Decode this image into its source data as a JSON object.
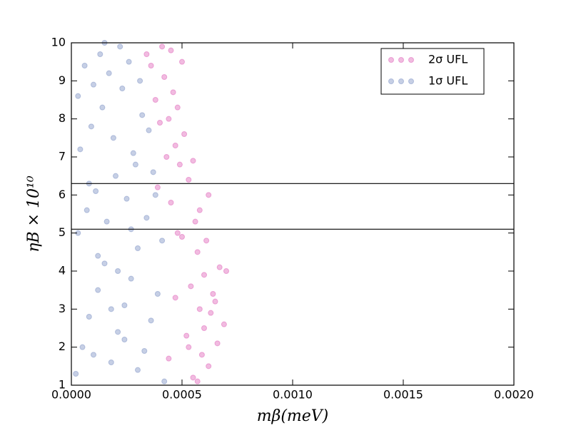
{
  "chart_data": {
    "type": "scatter",
    "xlabel": "mβ(meV)",
    "ylabel": "ηB × 10¹⁰",
    "xlim": [
      0,
      0.002
    ],
    "ylim": [
      1,
      10
    ],
    "xticks": [
      {
        "value": 0,
        "label": "0.0000"
      },
      {
        "value": 0.0005,
        "label": "0.0005"
      },
      {
        "value": 0.001,
        "label": "0.0010"
      },
      {
        "value": 0.0015,
        "label": "0.0015"
      },
      {
        "value": 0.002,
        "label": "0.0020"
      }
    ],
    "yticks": [
      1,
      2,
      3,
      4,
      5,
      6,
      7,
      8,
      9,
      10
    ],
    "hlines": [
      6.3,
      5.1
    ],
    "legend": "upper right",
    "series": [
      {
        "name": "2σ UFL",
        "color": "#e377c2",
        "x": [
          0.00062,
          0.00066,
          0.00069,
          0.00058,
          0.00064,
          0.00055,
          0.0006,
          0.00067,
          0.00052,
          0.00057,
          0.00063,
          0.0007,
          0.00054,
          0.00059,
          0.00065,
          0.00061,
          0.00056,
          0.00058,
          0.00062,
          0.00053,
          0.00049,
          0.00055,
          0.00047,
          0.00051,
          0.00044,
          0.00048,
          0.00046,
          0.00042,
          0.0005,
          0.00045,
          0.00043,
          0.00041,
          0.00048,
          0.00038,
          0.0004,
          0.00036,
          0.00039,
          0.00034,
          0.00045,
          0.0005,
          0.00053,
          0.00057,
          0.0006,
          0.00047,
          0.00044
        ],
        "values": [
          1.5,
          2.1,
          2.6,
          3.0,
          3.4,
          1.2,
          3.9,
          4.1,
          2.3,
          4.5,
          2.9,
          4.0,
          3.6,
          1.8,
          3.2,
          4.8,
          5.3,
          5.6,
          6.0,
          6.4,
          6.8,
          6.9,
          7.3,
          7.6,
          8.0,
          8.3,
          8.7,
          9.1,
          9.5,
          9.8,
          7.0,
          9.9,
          5.0,
          8.5,
          7.9,
          9.4,
          6.2,
          9.7,
          5.8,
          4.9,
          2.0,
          1.1,
          2.5,
          3.3,
          1.7
        ]
      },
      {
        "name": "1σ UFL",
        "color": "#8da0cb",
        "x": [
          2e-05,
          5e-05,
          8e-05,
          0.00012,
          0.00015,
          0.00018,
          0.00021,
          0.00024,
          0.00027,
          0.0003,
          0.00033,
          0.00036,
          0.00039,
          0.00042,
          3e-05,
          7e-05,
          0.00011,
          0.00016,
          0.0002,
          0.00025,
          0.00029,
          0.00034,
          0.00038,
          0.00041,
          4e-05,
          9e-05,
          0.00014,
          0.00019,
          0.00023,
          0.00028,
          0.00032,
          0.00037,
          6e-05,
          0.0001,
          0.00013,
          0.00017,
          0.00022,
          0.00026,
          0.00031,
          0.00035,
          8e-05,
          0.00012,
          0.00018,
          0.00024,
          0.0003,
          0.00015,
          0.00021,
          0.00027,
          3e-05,
          0.0001
        ],
        "values": [
          1.3,
          2.0,
          2.8,
          3.5,
          4.2,
          1.6,
          2.4,
          3.1,
          3.8,
          4.6,
          1.9,
          2.7,
          3.4,
          1.1,
          5.0,
          5.6,
          6.1,
          5.3,
          6.5,
          5.9,
          6.8,
          5.4,
          6.0,
          4.8,
          7.2,
          7.8,
          8.3,
          7.5,
          8.8,
          7.1,
          8.1,
          6.6,
          9.4,
          8.9,
          9.7,
          9.2,
          9.9,
          9.5,
          9.0,
          7.7,
          6.3,
          4.4,
          3.0,
          2.2,
          1.4,
          10.0,
          4.0,
          5.1,
          8.6,
          1.8
        ]
      }
    ]
  }
}
